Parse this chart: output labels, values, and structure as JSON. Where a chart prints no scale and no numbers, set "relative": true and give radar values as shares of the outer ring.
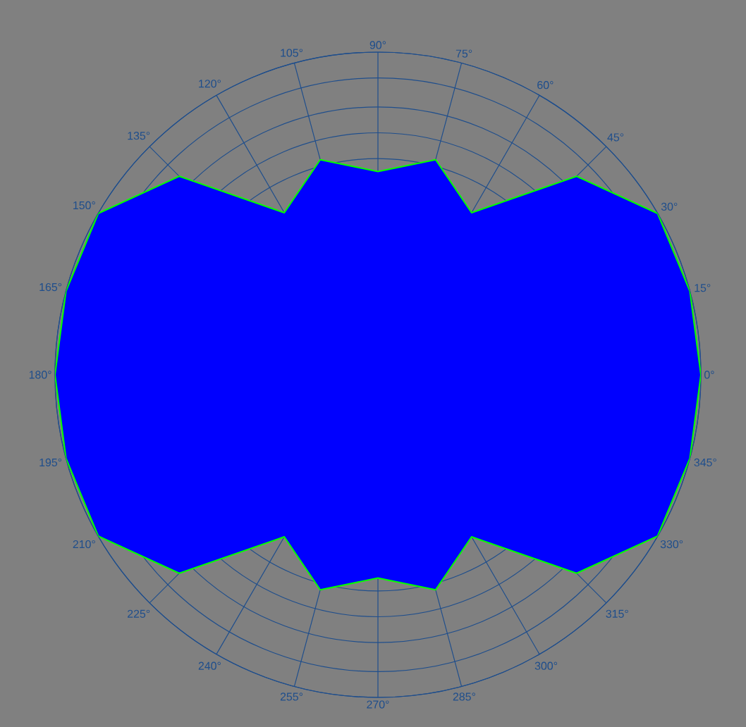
{
  "chart_data": {
    "type": "radar",
    "relative": true,
    "grid": true,
    "categories": [
      "90°",
      "75°",
      "60°",
      "45°",
      "30°",
      "15°",
      "0°",
      "345°",
      "330°",
      "315°",
      "300°",
      "285°",
      "270°",
      "255°",
      "240°",
      "225°",
      "210°",
      "195°",
      "180°",
      "165°",
      "150°",
      "135°",
      "120°",
      "105°"
    ],
    "series": [
      {
        "color": "#0000ff",
        "values": [
          0.63,
          0.69,
          0.58,
          0.87,
          1.0,
          1.0,
          1.0,
          1.0,
          1.0,
          0.87,
          0.58,
          0.69,
          0.63,
          0.69,
          0.58,
          0.87,
          1.0,
          1.0,
          1.0,
          1.0,
          1.0,
          0.87,
          0.58,
          0.69
        ]
      }
    ]
  }
}
